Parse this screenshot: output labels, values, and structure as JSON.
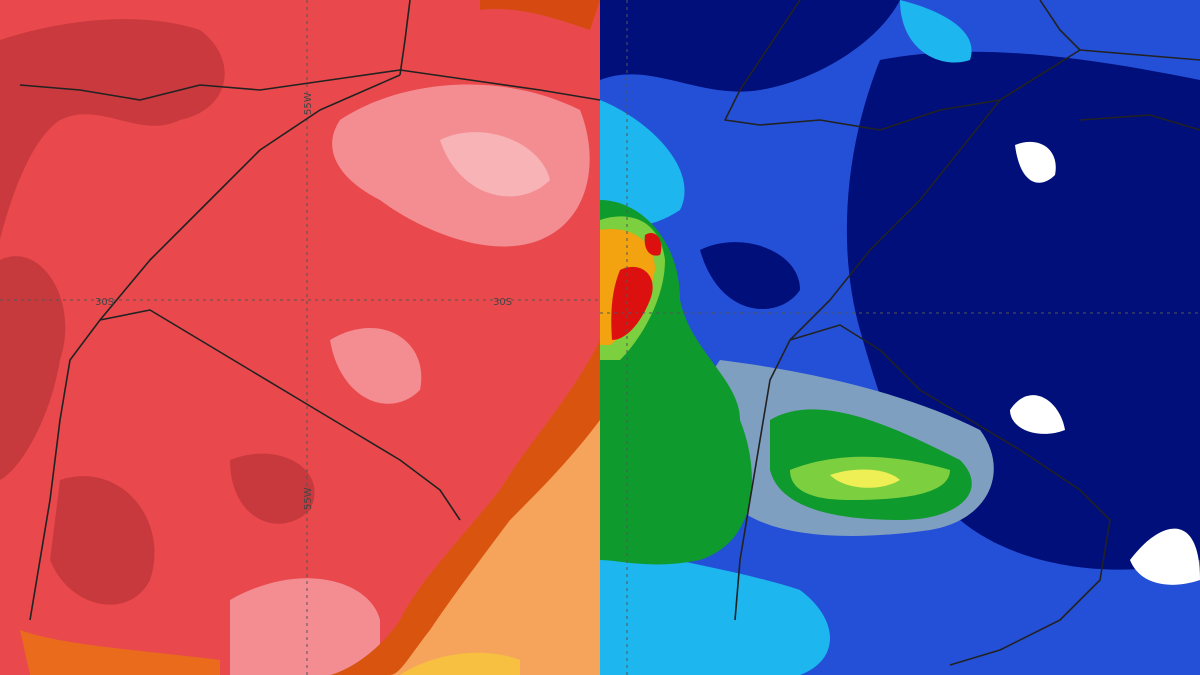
{
  "left_map": {
    "labels": [
      {
        "text": "55W"
      },
      {
        "text": "30S"
      },
      {
        "text": "30S"
      },
      {
        "text": "55W"
      }
    ]
  }
}
